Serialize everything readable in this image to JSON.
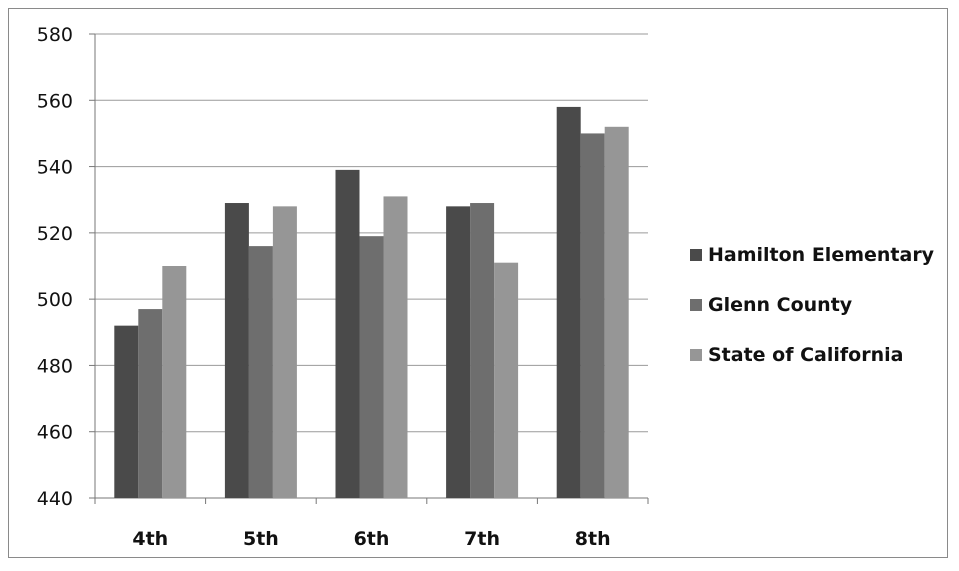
{
  "chart_data": {
    "type": "bar",
    "title": "",
    "xlabel": "",
    "ylabel": "",
    "categories": [
      "4th",
      "5th",
      "6th",
      "7th",
      "8th"
    ],
    "ylim": [
      440,
      580
    ],
    "yticks": [
      440,
      460,
      480,
      500,
      520,
      540,
      560,
      580
    ],
    "ytick_labels": [
      "440",
      "460",
      "480",
      "500",
      "520",
      "540",
      "560",
      "580"
    ],
    "grid": true,
    "legend_position": "right",
    "series": [
      {
        "name": "Hamilton Elementary",
        "color": "#4a4a4a",
        "values": [
          492,
          529,
          539,
          528,
          558
        ]
      },
      {
        "name": "Glenn County",
        "color": "#6e6e6e",
        "values": [
          497,
          516,
          519,
          529,
          550
        ]
      },
      {
        "name": "State of California",
        "color": "#969696",
        "values": [
          510,
          528,
          531,
          511,
          552
        ]
      }
    ]
  }
}
